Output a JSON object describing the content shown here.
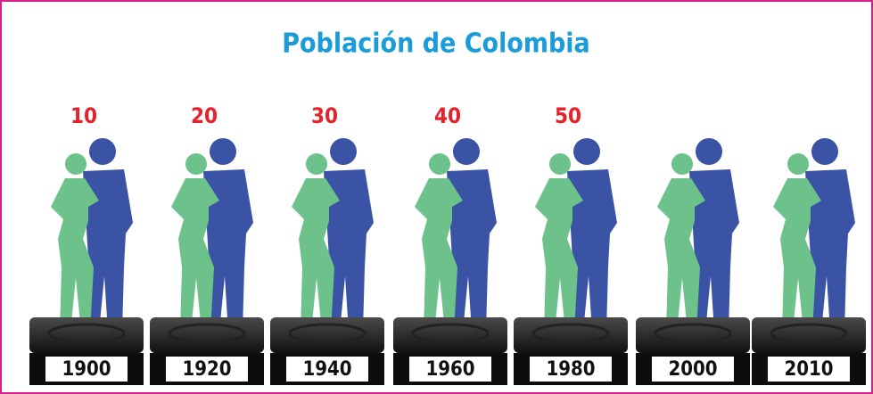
{
  "title": "Población de Colombia",
  "figures": [
    {
      "label": "10",
      "year": "1900"
    },
    {
      "label": "20",
      "year": "1920"
    },
    {
      "label": "30",
      "year": "1940"
    },
    {
      "label": "40",
      "year": "1960"
    },
    {
      "label": "50",
      "year": "1980"
    },
    {
      "year": "2000"
    },
    {
      "year": "2010"
    }
  ]
}
